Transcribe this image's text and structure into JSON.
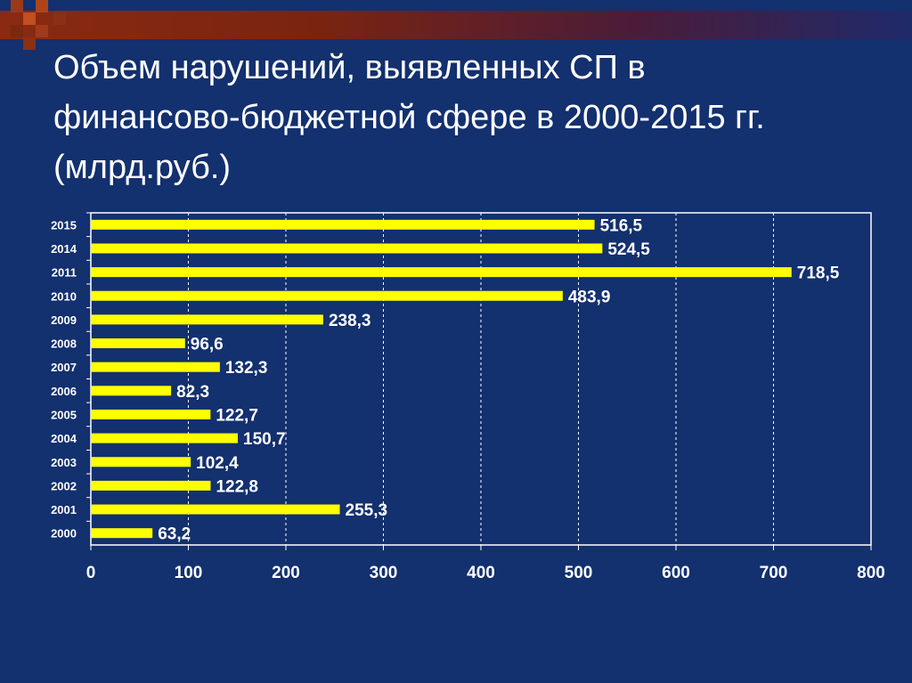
{
  "slide": {
    "title": "Объем нарушений, выявленных СП в финансово-бюджетной сфере в 2000-2015 гг. (млрд.руб.)"
  },
  "colors": {
    "background": "#13306f",
    "bar": "#ffff00",
    "text": "#ffffff",
    "grid": "#ffffff",
    "accent_band": "#8a2a12"
  },
  "chart_data": {
    "type": "bar",
    "orientation": "horizontal",
    "categories": [
      "2015",
      "2014",
      "2011",
      "2010",
      "2009",
      "2008",
      "2007",
      "2006",
      "2005",
      "2004",
      "2003",
      "2002",
      "2001",
      "2000"
    ],
    "values": [
      516.5,
      524.5,
      718.5,
      483.9,
      238.3,
      96.6,
      132.3,
      82.3,
      122.7,
      150.7,
      102.4,
      122.8,
      255.3,
      63.2
    ],
    "value_labels": [
      "516,5",
      "524,5",
      "718,5",
      "483,9",
      "238,3",
      "96,6",
      "132,3",
      "82,3",
      "122,7",
      "150,7",
      "102,4",
      "122,8",
      "255,3",
      "63,2"
    ],
    "xlim": [
      0,
      800
    ],
    "xticks": [
      "0",
      "100",
      "200",
      "300",
      "400",
      "500",
      "600",
      "700",
      "800"
    ],
    "xtick_values": [
      0,
      100,
      200,
      300,
      400,
      500,
      600,
      700,
      800
    ],
    "grid": "vertical dashed",
    "legend": "none"
  }
}
